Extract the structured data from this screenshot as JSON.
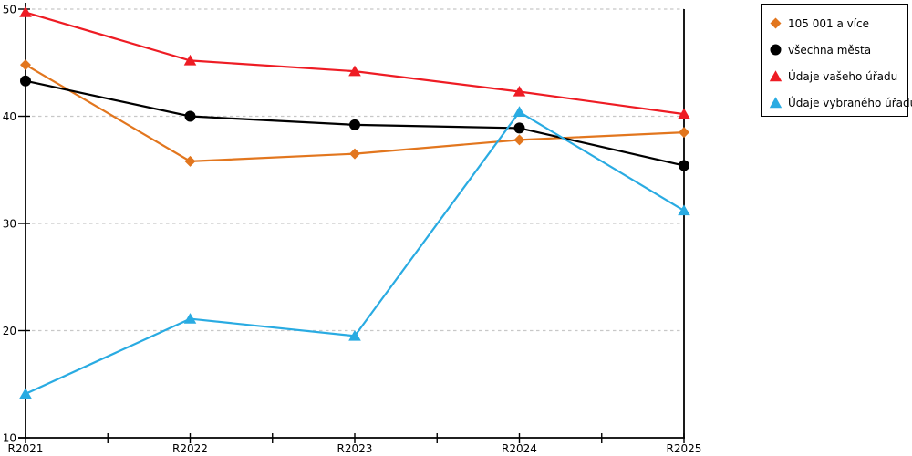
{
  "chart_data": {
    "type": "line",
    "title": "",
    "xlabel": "",
    "ylabel": "",
    "categories": [
      "R2021",
      "R2022",
      "R2023",
      "R2024",
      "R2025"
    ],
    "series": [
      {
        "name": "105 001 a více",
        "color": "#E2761E",
        "marker": "diamond",
        "values": [
          44.8,
          35.8,
          36.5,
          37.8,
          38.5
        ]
      },
      {
        "name": "všechna města",
        "color": "#000000",
        "marker": "circle",
        "values": [
          43.3,
          40.0,
          39.2,
          38.9,
          35.4
        ]
      },
      {
        "name": "Údaje vašeho úřadu",
        "color": "#EE1C24",
        "marker": "triangle",
        "values": [
          49.7,
          45.2,
          44.2,
          42.3,
          40.2
        ]
      },
      {
        "name": "Údaje vybraného úřadu",
        "color": "#29ABE2",
        "marker": "triangle",
        "values": [
          14.1,
          21.1,
          19.5,
          40.4,
          31.2
        ]
      }
    ],
    "ylim": [
      10,
      50
    ],
    "yticks": [
      10,
      20,
      30,
      40,
      50
    ],
    "grid": true,
    "grid_color": "#c8c8c8",
    "axis_color": "#000000",
    "legend_position": "top-right"
  }
}
